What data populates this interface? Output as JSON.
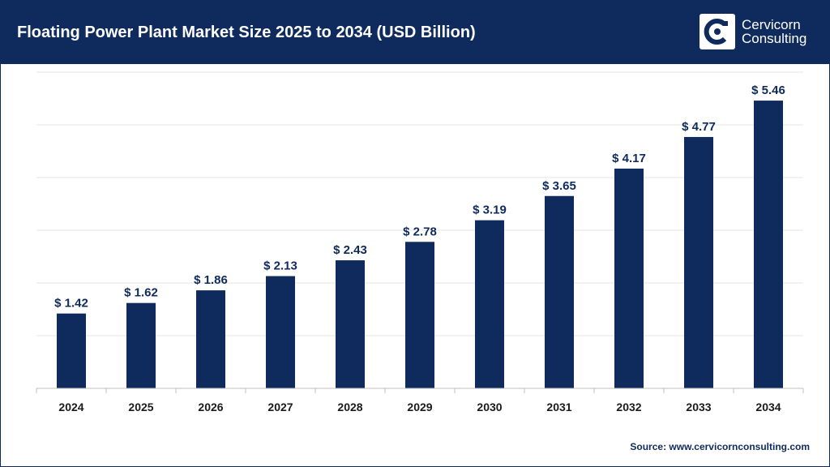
{
  "header": {
    "title": "Floating Power Plant Market Size 2025 to 2034 (USD Billion)",
    "logo": {
      "line1": "Cervicorn",
      "line2": "Consulting",
      "icon": "cervicorn-logo-icon"
    }
  },
  "colors": {
    "header_bg": "#0f2a5c",
    "bar": "#0f2a5c",
    "grid": "#e6e6e6"
  },
  "chart_data": {
    "type": "bar",
    "categories": [
      "2024",
      "2025",
      "2026",
      "2027",
      "2028",
      "2029",
      "2030",
      "2031",
      "2032",
      "2033",
      "2034"
    ],
    "values": [
      1.42,
      1.62,
      1.86,
      2.13,
      2.43,
      2.78,
      3.19,
      3.65,
      4.17,
      4.77,
      5.46
    ],
    "data_labels": [
      "$ 1.42",
      "$ 1.62",
      "$ 1.86",
      "$ 2.13",
      "$ 2.43",
      "$ 2.78",
      "$ 3.19",
      "$ 3.65",
      "$ 4.17",
      "$ 4.77",
      "$ 5.46"
    ],
    "title": "Floating Power Plant Market Size 2025 to 2034 (USD Billion)",
    "xlabel": "",
    "ylabel": "",
    "ylim": [
      0,
      6
    ],
    "grid": true,
    "legend": "none"
  },
  "source": "Source: www.cervicornconsulting.com"
}
